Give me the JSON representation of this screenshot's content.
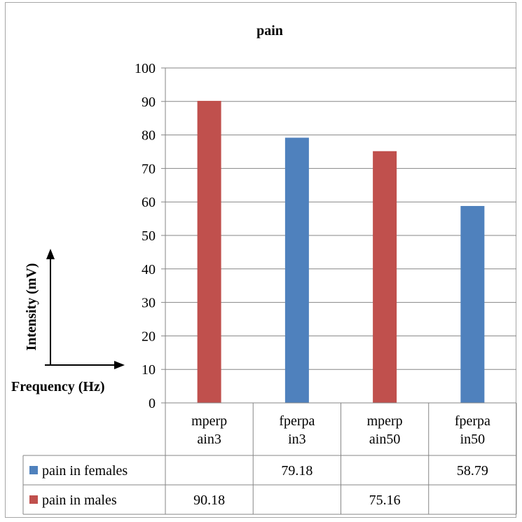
{
  "chart_data": {
    "type": "bar",
    "title": "pain",
    "categories": [
      "mperp\nain3",
      "fperpa\nin3",
      "mperp\nain50",
      "fperpa\nin50"
    ],
    "series": [
      {
        "name": "pain in females",
        "color": "#4f81bd",
        "values": [
          null,
          79.18,
          null,
          58.79
        ]
      },
      {
        "name": "pain in males",
        "color": "#c0504d",
        "values": [
          90.18,
          null,
          75.16,
          null
        ]
      }
    ],
    "ylim": [
      0,
      100
    ],
    "yticks": [
      0,
      10,
      20,
      30,
      40,
      50,
      60,
      70,
      80,
      90,
      100
    ],
    "grid": true,
    "legend": "data-table",
    "data_table": {
      "rows": [
        {
          "label": "pain in females",
          "cells": [
            "",
            "79.18",
            "",
            "58.79"
          ]
        },
        {
          "label": "pain in males",
          "cells": [
            "90.18",
            "",
            "75.16",
            ""
          ]
        }
      ]
    },
    "annotations": {
      "y_arrow_label": "Intensity (mV)",
      "x_arrow_label": "Frequency (Hz)"
    }
  }
}
